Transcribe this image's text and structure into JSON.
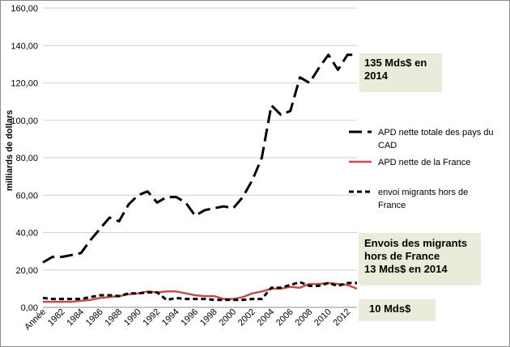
{
  "chart_data": {
    "type": "line",
    "title": "",
    "xlabel": "",
    "ylabel": "milliards de dollars",
    "ylim": [
      0,
      160
    ],
    "yticks": [
      "0,00",
      "20,00",
      "40,00",
      "60,00",
      "80,00",
      "100,00",
      "120,00",
      "140,00",
      "160,00"
    ],
    "x": [
      1980,
      1981,
      1982,
      1983,
      1984,
      1985,
      1986,
      1987,
      1988,
      1989,
      1990,
      1991,
      1992,
      1993,
      1994,
      1995,
      1996,
      1997,
      1998,
      1999,
      2000,
      2001,
      2002,
      2003,
      2004,
      2005,
      2006,
      2007,
      2008,
      2009,
      2010,
      2011,
      2012,
      2013
    ],
    "xtick_labels": [
      {
        "x": 1980,
        "label": "Année"
      },
      {
        "x": 1982,
        "label": "1982"
      },
      {
        "x": 1984,
        "label": "1984"
      },
      {
        "x": 1986,
        "label": "1986"
      },
      {
        "x": 1988,
        "label": "1988"
      },
      {
        "x": 1990,
        "label": "1990"
      },
      {
        "x": 1992,
        "label": "1992"
      },
      {
        "x": 1994,
        "label": "1994"
      },
      {
        "x": 1996,
        "label": "1996"
      },
      {
        "x": 1998,
        "label": "1998"
      },
      {
        "x": 2000,
        "label": "2000"
      },
      {
        "x": 2002,
        "label": "2002"
      },
      {
        "x": 2004,
        "label": "2004"
      },
      {
        "x": 2006,
        "label": "2006"
      },
      {
        "x": 2008,
        "label": "2008"
      },
      {
        "x": 2010,
        "label": "2010"
      },
      {
        "x": 2012,
        "label": "2012"
      }
    ],
    "series": [
      {
        "name": "APD nette totale des pays du CAD",
        "color": "#000000",
        "dash": "long",
        "values": [
          24,
          27,
          27,
          28,
          29,
          36,
          42,
          48,
          46,
          55,
          60,
          62,
          56,
          59,
          59,
          56,
          49,
          52,
          53,
          54,
          53,
          59,
          68,
          80,
          108,
          103,
          105,
          123,
          120,
          128,
          135,
          127,
          135,
          135
        ]
      },
      {
        "name": "APD nette de la France",
        "color": "#c0504d",
        "dash": "solid",
        "values": [
          3,
          3,
          3,
          3,
          3.5,
          4,
          5,
          5.5,
          6,
          7,
          7.5,
          8.5,
          8,
          8.5,
          8.5,
          7.5,
          6.5,
          6,
          6,
          4.5,
          4.5,
          5.5,
          7.5,
          8.5,
          10,
          10,
          11,
          10.5,
          12.5,
          12.5,
          13,
          12.5,
          12,
          10
        ]
      },
      {
        "name": "envoi migrants hors de France",
        "color": "#000000",
        "dash": "short",
        "values": [
          5,
          4.5,
          4.5,
          4.5,
          4.5,
          5.5,
          6.5,
          6.5,
          6,
          7.5,
          7.5,
          8,
          8,
          4,
          5,
          4.5,
          4.5,
          4.5,
          4,
          4,
          4,
          4,
          4.5,
          4.5,
          10.5,
          10.5,
          12,
          13.5,
          11.5,
          11.5,
          13,
          11.5,
          13,
          13
        ]
      }
    ],
    "legend": [
      {
        "line1": "APD nette totale des pays du",
        "line2": "CAD"
      },
      {
        "line1": "APD nette de la France",
        "line2": ""
      },
      {
        "line1": "envoi migrants hors de",
        "line2": "France"
      }
    ],
    "annotations": {
      "cad": {
        "line1": "135 Mds$ en",
        "line2": "2014"
      },
      "migrants": {
        "line1": "Envois des migrants",
        "line2": "hors de France",
        "line3": "13 Mds$ en 2014"
      },
      "france": {
        "line1": "10 Mds$"
      }
    }
  }
}
